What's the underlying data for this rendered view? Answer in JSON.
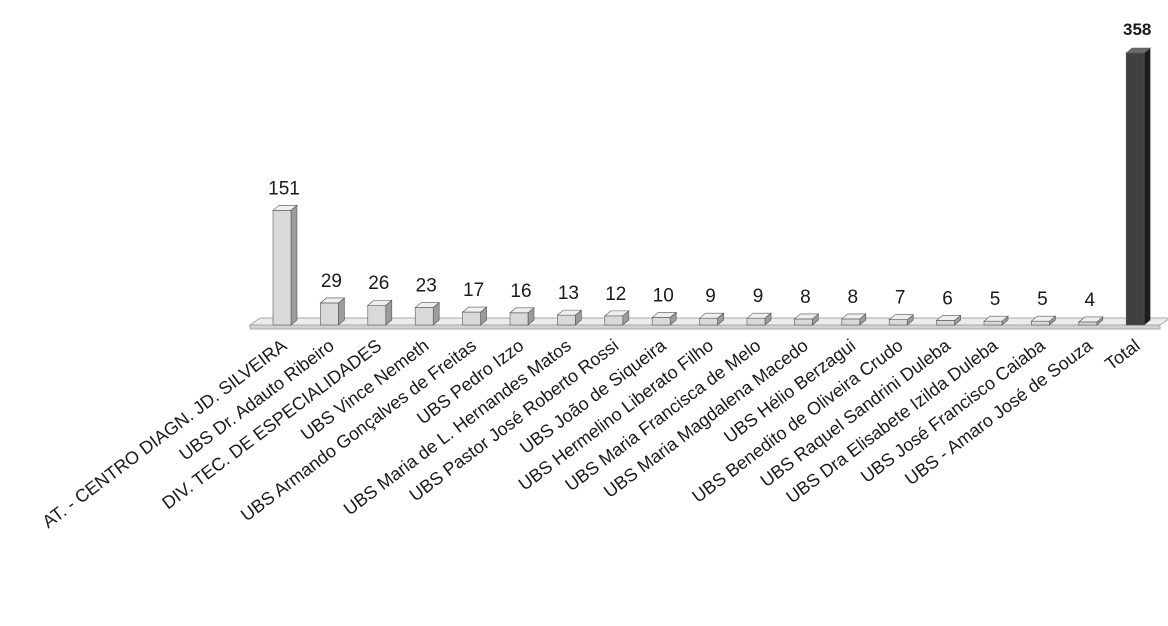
{
  "chart_data": {
    "type": "bar",
    "title": "",
    "xlabel": "",
    "ylabel": "",
    "grid": false,
    "legend": "none",
    "ylim": [
      0,
      380
    ],
    "categories": [
      "AT. - CENTRO DIAGN. JD. SILVEIRA",
      "UBS Dr. Adauto Ribeiro",
      "DIV. TEC. DE ESPECIALIDADES",
      "UBS Vince Nemeth",
      "UBS Armando Gonçalves de Freitas",
      "UBS Pedro Izzo",
      "UBS Maria de L. Hernandes Matos",
      "UBS Pastor José Roberto Rossi",
      "UBS João de Siqueira",
      "UBS Hermelino Liberato Filho",
      "UBS Maria Francisca de Melo",
      "UBS Maria Magdalena Macedo",
      "UBS Hélio Berzagui",
      "UBS Benedito de Oliveira Crudo",
      "UBS Raquel Sandrini Duleba",
      "UBS Dra Elisabete Izilda Duleba",
      "UBS José Francisco Caiaba",
      "UBS - Amaro José de Souza",
      "Total"
    ],
    "values": [
      151,
      29,
      26,
      23,
      17,
      16,
      13,
      12,
      10,
      9,
      9,
      8,
      8,
      7,
      6,
      5,
      5,
      4,
      358
    ],
    "data_labels": [
      "151",
      "29",
      "26",
      "23",
      "17",
      "16",
      "13",
      "12",
      "10",
      "9",
      "9",
      "8",
      "8",
      "7",
      "6",
      "5",
      "5",
      "4",
      "358"
    ],
    "colors": {
      "bar_front": "#d9d9d9",
      "bar_side": "#9c9c9c",
      "bar_top": "#efefef",
      "total_front": "#404040",
      "total_side": "#1c1c1c",
      "total_top": "#6a6a6a",
      "floor_top": "#ececec",
      "floor_front": "#d2d2d2",
      "floor_stroke": "#a8a8a8"
    }
  }
}
